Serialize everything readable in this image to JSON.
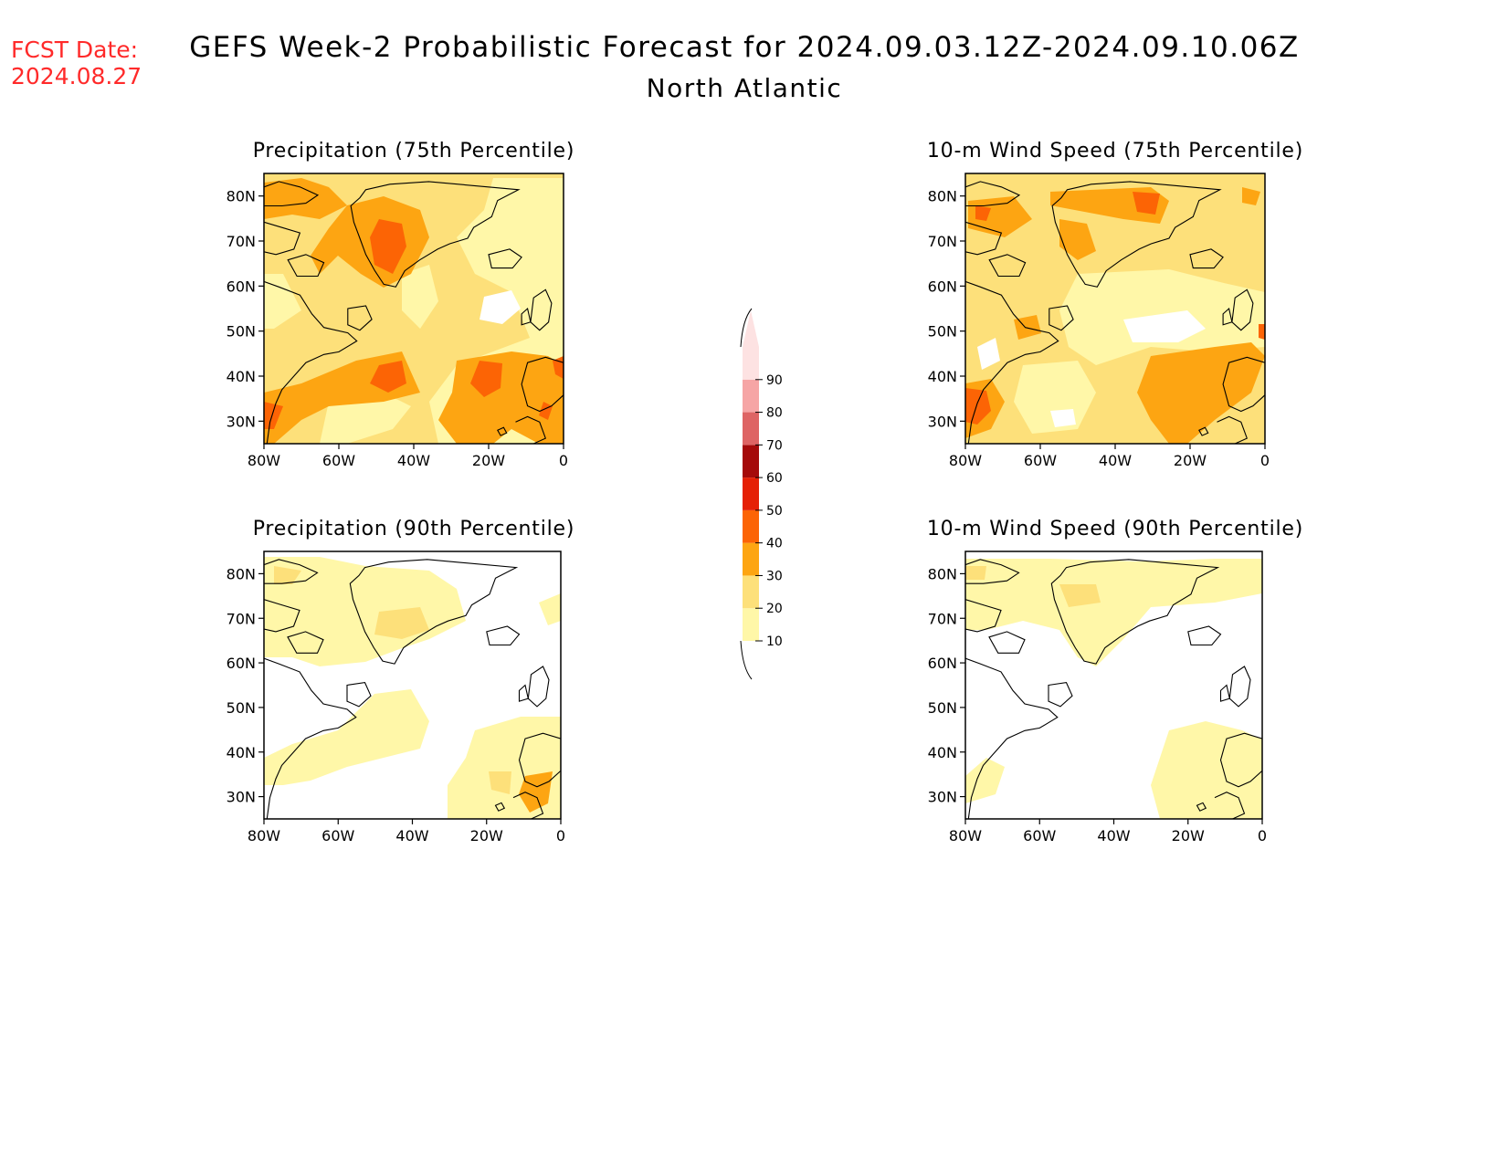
{
  "fcst": {
    "line1": "FCST Date:",
    "line2": "2024.08.27",
    "color": "#ff2a2a"
  },
  "header": {
    "title": "GEFS Week-2 Probabilistic Forecast for 2024.09.03.12Z-2024.09.10.06Z",
    "region": "North Atlantic"
  },
  "axes": {
    "lat_ticks": [
      "80N",
      "70N",
      "60N",
      "50N",
      "40N",
      "30N"
    ],
    "lon_ticks": [
      "80W",
      "60W",
      "40W",
      "20W",
      "0"
    ]
  },
  "panels": [
    {
      "title": "Precipitation (75th Percentile)"
    },
    {
      "title": "10-m Wind Speed (75th Percentile)"
    },
    {
      "title": "Precipitation (90th Percentile)"
    },
    {
      "title": "10-m Wind Speed (90th Percentile)"
    }
  ],
  "colorbar": {
    "levels": [
      "10",
      "20",
      "30",
      "40",
      "50",
      "60",
      "70",
      "80",
      "90"
    ],
    "colors": [
      "#fff7a8",
      "#fde07a",
      "#fda512",
      "#fc6405",
      "#e52006",
      "#a50a0a",
      "#de6464",
      "#f6a5a5",
      "#fde2e2"
    ]
  }
}
